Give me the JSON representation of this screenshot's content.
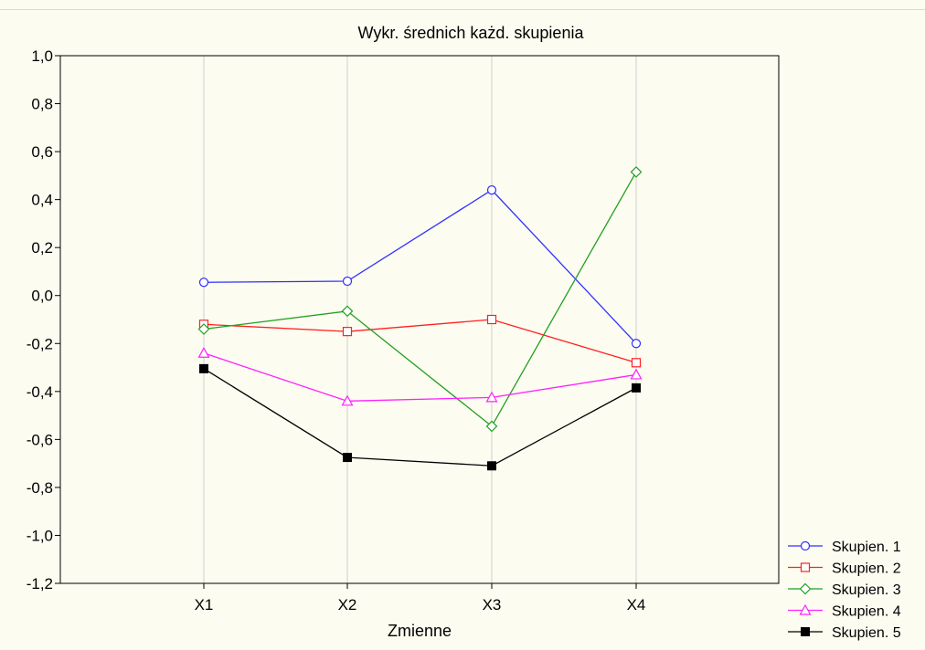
{
  "chart_data": {
    "type": "line",
    "title": "Wykr. średnich każd. skupienia",
    "xlabel": "Zmienne",
    "ylabel": "",
    "categories": [
      "X1",
      "X2",
      "X3",
      "X4"
    ],
    "ylim": [
      -1.2,
      1.0
    ],
    "yticks": [
      1.0,
      0.8,
      0.6,
      0.4,
      0.2,
      0.0,
      -0.2,
      -0.4,
      -0.6,
      -0.8,
      -1.0,
      -1.2
    ],
    "ytick_labels": [
      "1,0",
      "0,8",
      "0,6",
      "0,4",
      "0,2",
      "0,0",
      "-0,2",
      "-0,4",
      "-0,6",
      "-0,8",
      "-1,0",
      "-1,2"
    ],
    "grid": "vertical",
    "legend_position": "bottom-right outside",
    "series": [
      {
        "name": "Skupien. 1",
        "color": "#3030ff",
        "marker": "circle-open",
        "values": [
          0.055,
          0.06,
          0.44,
          -0.2
        ]
      },
      {
        "name": "Skupien. 2",
        "color": "#ff2020",
        "marker": "square-open",
        "values": [
          -0.12,
          -0.15,
          -0.1,
          -0.28
        ]
      },
      {
        "name": "Skupien. 3",
        "color": "#20a020",
        "marker": "diamond-open",
        "values": [
          -0.14,
          -0.065,
          -0.545,
          0.515
        ]
      },
      {
        "name": "Skupien. 4",
        "color": "#ff20ff",
        "marker": "triangle-open",
        "values": [
          -0.24,
          -0.44,
          -0.425,
          -0.33
        ]
      },
      {
        "name": "Skupien. 5",
        "color": "#000000",
        "marker": "square-filled",
        "values": [
          -0.305,
          -0.675,
          -0.71,
          -0.385
        ]
      }
    ]
  }
}
